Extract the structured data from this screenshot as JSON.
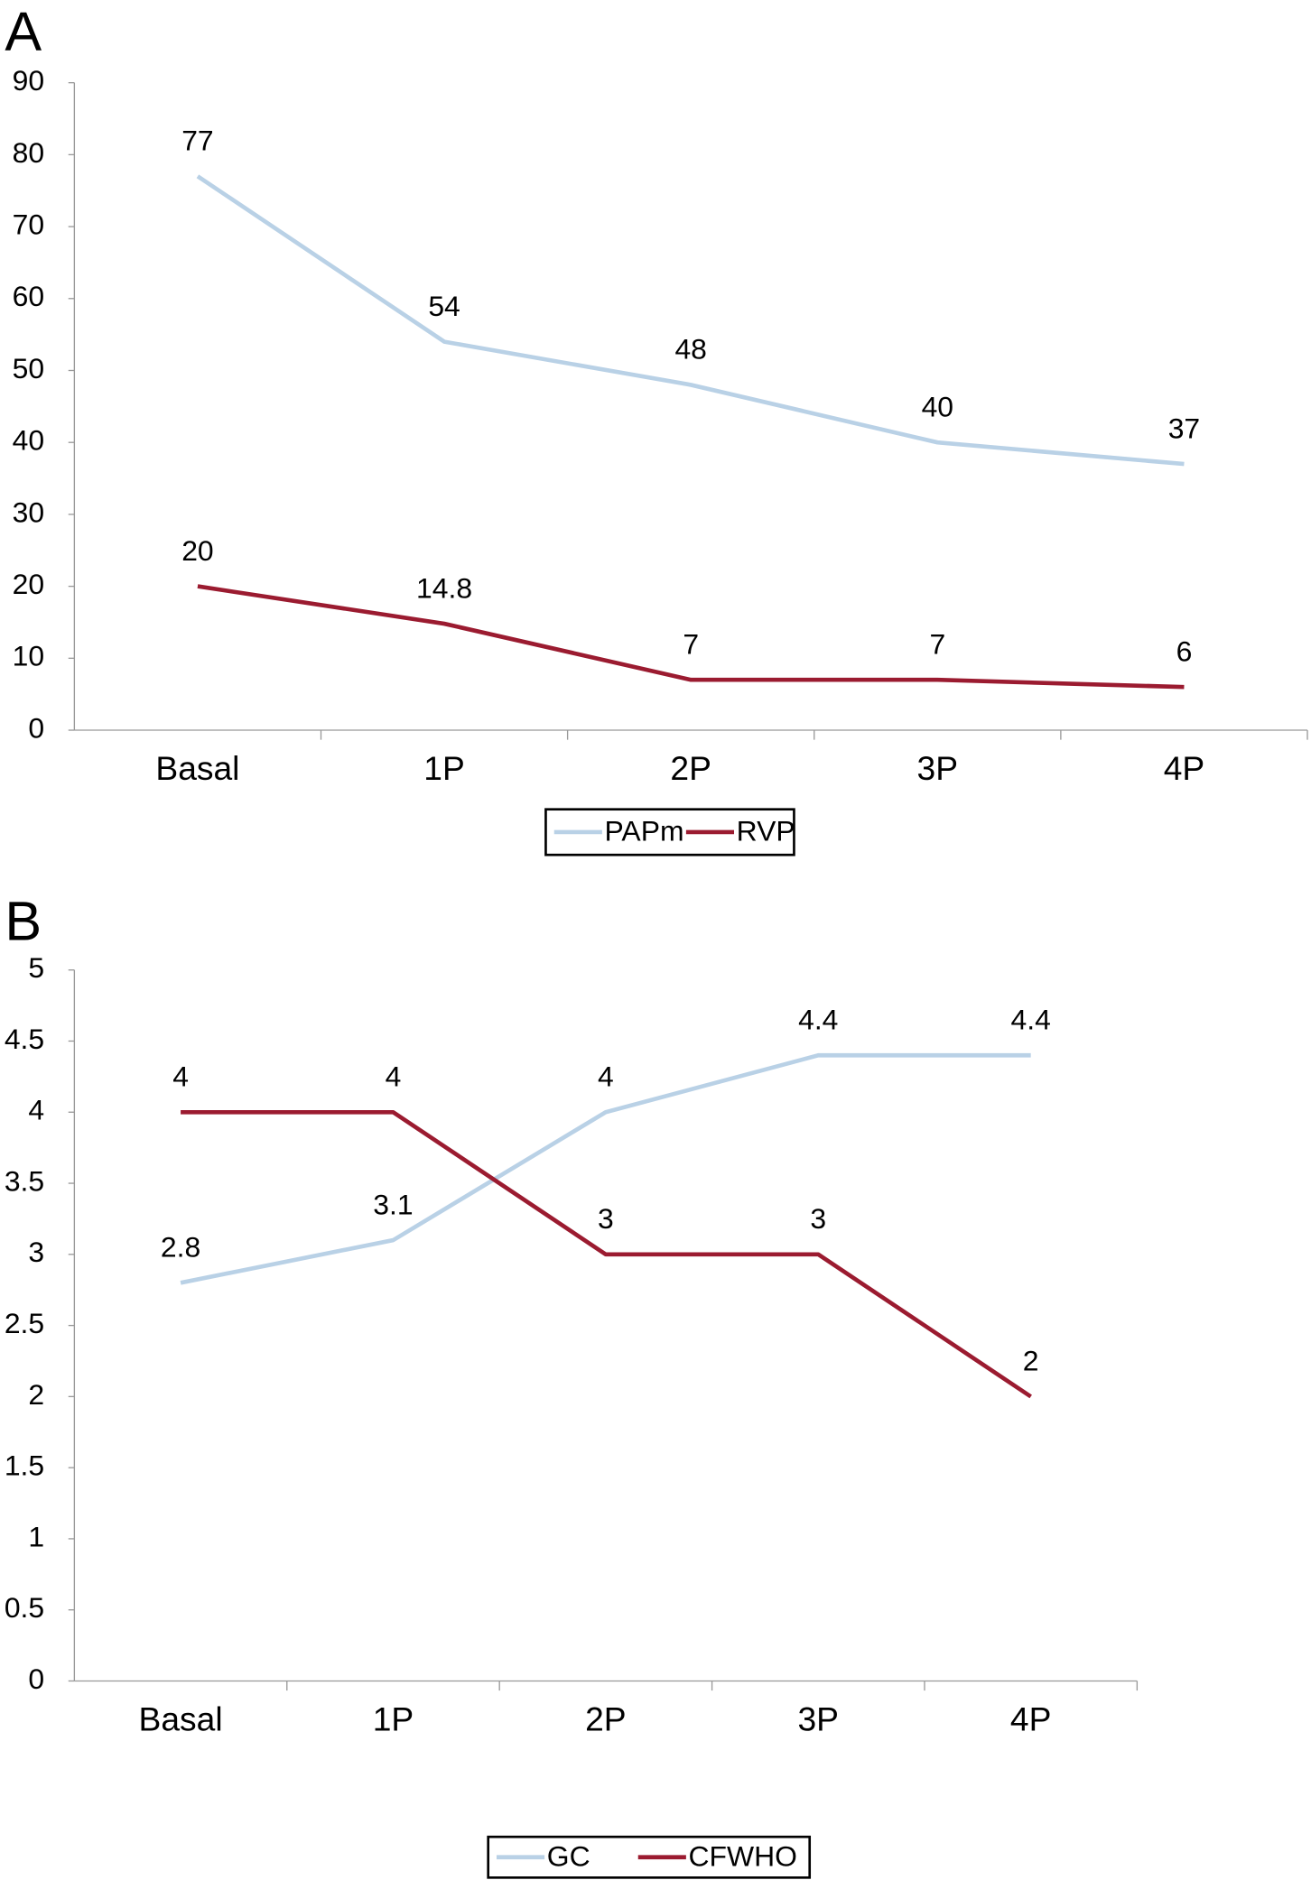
{
  "chart_data": [
    {
      "type": "line",
      "panel": "A",
      "categories": [
        "Basal",
        "1P",
        "2P",
        "3P",
        "4P"
      ],
      "series": [
        {
          "name": "PAPm",
          "color": "#b9d1e6",
          "values": [
            77,
            54,
            48,
            40,
            37
          ]
        },
        {
          "name": "RVP",
          "color": "#9b1b30",
          "values": [
            20,
            14.8,
            7,
            7,
            6
          ]
        }
      ],
      "ylim": [
        0,
        90
      ],
      "yticks": [
        0,
        10,
        20,
        30,
        40,
        50,
        60,
        70,
        80,
        90
      ],
      "grid": false,
      "legend": "bottom"
    },
    {
      "type": "line",
      "panel": "B",
      "categories": [
        "Basal",
        "1P",
        "2P",
        "3P",
        "4P"
      ],
      "series": [
        {
          "name": "GC",
          "color": "#b9d1e6",
          "values": [
            2.8,
            3.1,
            4,
            4.4,
            4.4
          ]
        },
        {
          "name": "CFWHO",
          "color": "#9b1b30",
          "values": [
            4,
            4,
            3,
            3,
            2
          ]
        }
      ],
      "ylim": [
        0,
        5
      ],
      "yticks": [
        0,
        0.5,
        1,
        1.5,
        2,
        2.5,
        3,
        3.5,
        4,
        4.5,
        5
      ],
      "grid": false,
      "legend": "bottom"
    }
  ]
}
